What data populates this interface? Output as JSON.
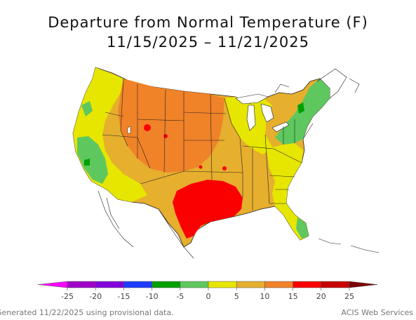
{
  "title": "Departure from Normal Temperature (F)",
  "subtitle": "11/15/2025 – 11/21/2025",
  "footer_left": "Generated 11/22/2025 using provisional data.",
  "footer_right": "ACIS Web Services",
  "legend": {
    "ticks": [
      "-25",
      "-20",
      "-15",
      "-10",
      "-5",
      "0",
      "5",
      "10",
      "15",
      "20",
      "25"
    ],
    "bins": [
      {
        "range": [
          -25,
          -20
        ],
        "color": "#a000c8"
      },
      {
        "range": [
          -20,
          -15
        ],
        "color": "#8200dc"
      },
      {
        "range": [
          -15,
          -10
        ],
        "color": "#1e3cff"
      },
      {
        "range": [
          -10,
          -5
        ],
        "color": "#00a000"
      },
      {
        "range": [
          -5,
          0
        ],
        "color": "#5ec85e"
      },
      {
        "range": [
          0,
          5
        ],
        "color": "#e6e600"
      },
      {
        "range": [
          5,
          10
        ],
        "color": "#e6af2d"
      },
      {
        "range": [
          10,
          15
        ],
        "color": "#f08228"
      },
      {
        "range": [
          15,
          20
        ],
        "color": "#fa0000"
      },
      {
        "range": [
          20,
          25
        ],
        "color": "#c80000"
      }
    ],
    "low_arrow_color": "#ff00ff",
    "high_arrow_color": "#7d0000"
  },
  "map": {
    "region": "Contiguous United States",
    "colors": {
      "below_normal": "#5ec85e",
      "below_normal_strong": "#00a000",
      "slightly_above": "#e6e600",
      "moderately_above": "#e6af2d",
      "above": "#f08228",
      "much_above": "#fa0000",
      "state_lines": "#222222",
      "coast": "#222222"
    }
  }
}
